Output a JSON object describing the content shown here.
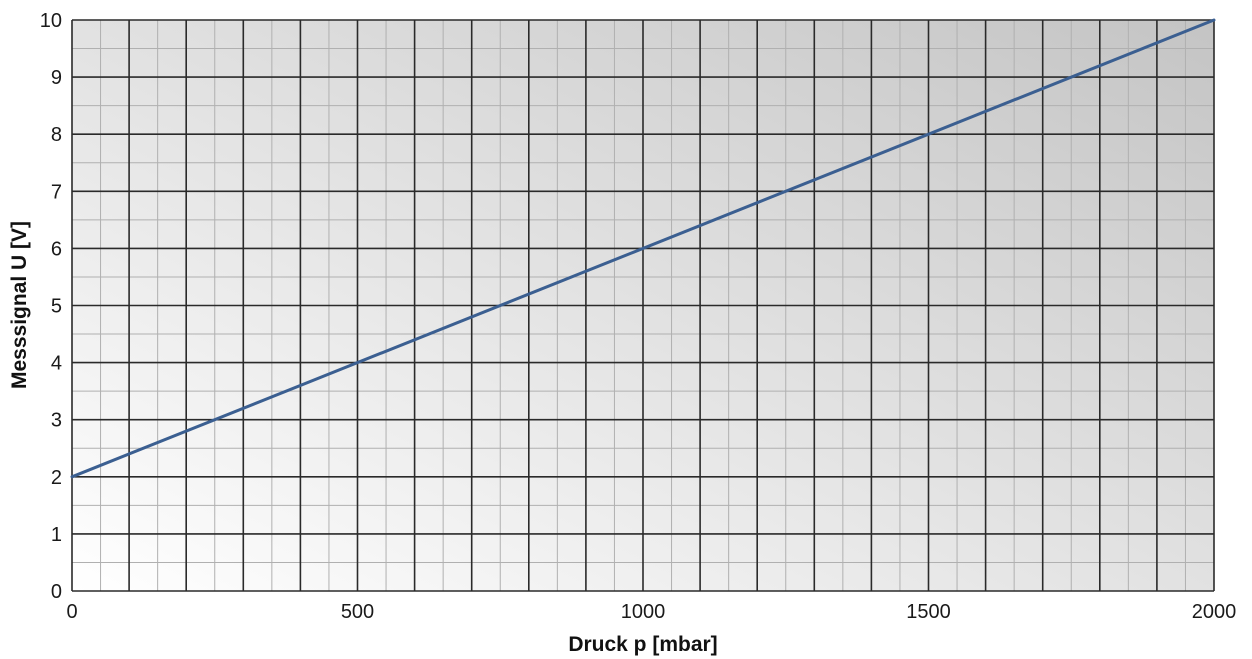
{
  "chart_data": {
    "type": "line",
    "title": "",
    "xlabel": "Druck p [mbar]",
    "ylabel": "Messsignal U [V]",
    "xlim": [
      0,
      2000
    ],
    "ylim": [
      0,
      10
    ],
    "x_major_ticks": [
      0,
      500,
      1000,
      1500,
      2000
    ],
    "x_tick_labels": [
      "0",
      "500",
      "1000",
      "1500",
      "2000"
    ],
    "y_major_ticks": [
      0,
      1,
      2,
      3,
      4,
      5,
      6,
      7,
      8,
      9,
      10
    ],
    "y_tick_labels": [
      "0",
      "1",
      "2",
      "3",
      "4",
      "5",
      "6",
      "7",
      "8",
      "9",
      "10"
    ],
    "x_major_grid_step": 100,
    "x_minor_grid_step": 50,
    "y_major_grid_step": 1,
    "y_minor_grid_step": 0.5,
    "grid": true,
    "background": "gradient light-to-dark left-to-right",
    "colors": {
      "line": "#3b5f91",
      "major_grid": "#2a2a2a",
      "minor_grid": "#b0b0b0",
      "bg_left": "#ffffff",
      "bg_right": "#c4c4c4"
    },
    "series": [
      {
        "x": [
          0,
          2000
        ],
        "y": [
          2,
          10
        ]
      }
    ]
  }
}
